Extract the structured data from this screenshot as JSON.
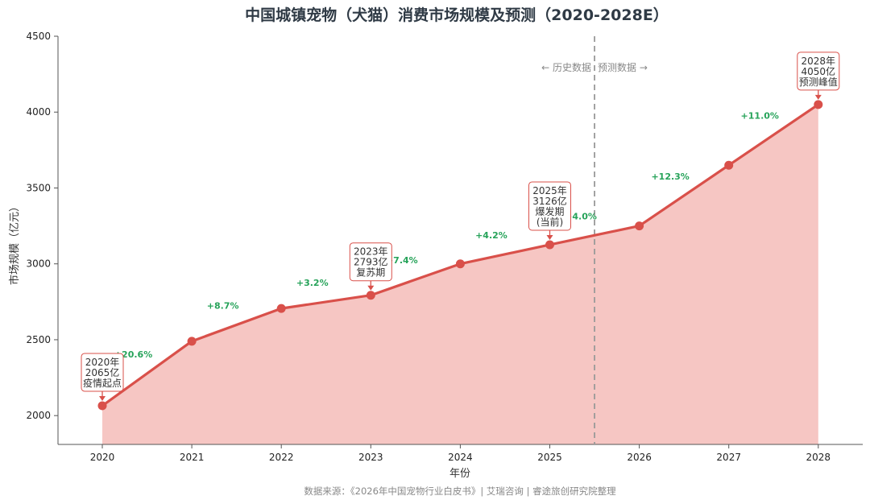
{
  "chart_data": {
    "type": "area",
    "title": "中国城镇宠物（犬猫）消费市场规模及预测（2020-2028E）",
    "xlabel": "年份",
    "ylabel": "市场规模（亿元）",
    "categories": [
      "2020",
      "2021",
      "2022",
      "2023",
      "2024",
      "2025",
      "2026",
      "2027",
      "2028"
    ],
    "series": [
      {
        "values": [
          2065,
          2490,
          2706,
          2793,
          3000,
          3126,
          3250,
          3650,
          4050
        ]
      }
    ],
    "ylim": [
      1810,
      4500
    ],
    "yticks": [
      "2000",
      "2500",
      "3000",
      "3500",
      "4000",
      "4500"
    ],
    "growth_labels": [
      "+20.6%",
      "+8.7%",
      "+3.2%",
      "+7.4%",
      "+4.2%",
      "+4.0%",
      "+12.3%",
      "+11.0%"
    ],
    "divider_at": 2025.5,
    "divider_labels": {
      "left": "← 历史数据",
      "right": "预测数据 →"
    },
    "annotations": [
      {
        "year": "2020",
        "lines": [
          "2020年",
          "2065亿",
          "疫情起点"
        ]
      },
      {
        "year": "2023",
        "lines": [
          "2023年",
          "2793亿",
          "复苏期"
        ]
      },
      {
        "year": "2025",
        "lines": [
          "2025年",
          "3126亿",
          "爆发期",
          "(当前)"
        ]
      },
      {
        "year": "2028",
        "lines": [
          "2028年",
          "4050亿",
          "预测峰值"
        ]
      }
    ],
    "grid": false,
    "line_color": "#d9504a",
    "fill_color": "#f5bcb8",
    "growth_color": "#27a35a",
    "source": "数据来源：《2026年中国宠物行业白皮书》| 艾瑞咨询 | 睿途旅创研究院整理"
  }
}
